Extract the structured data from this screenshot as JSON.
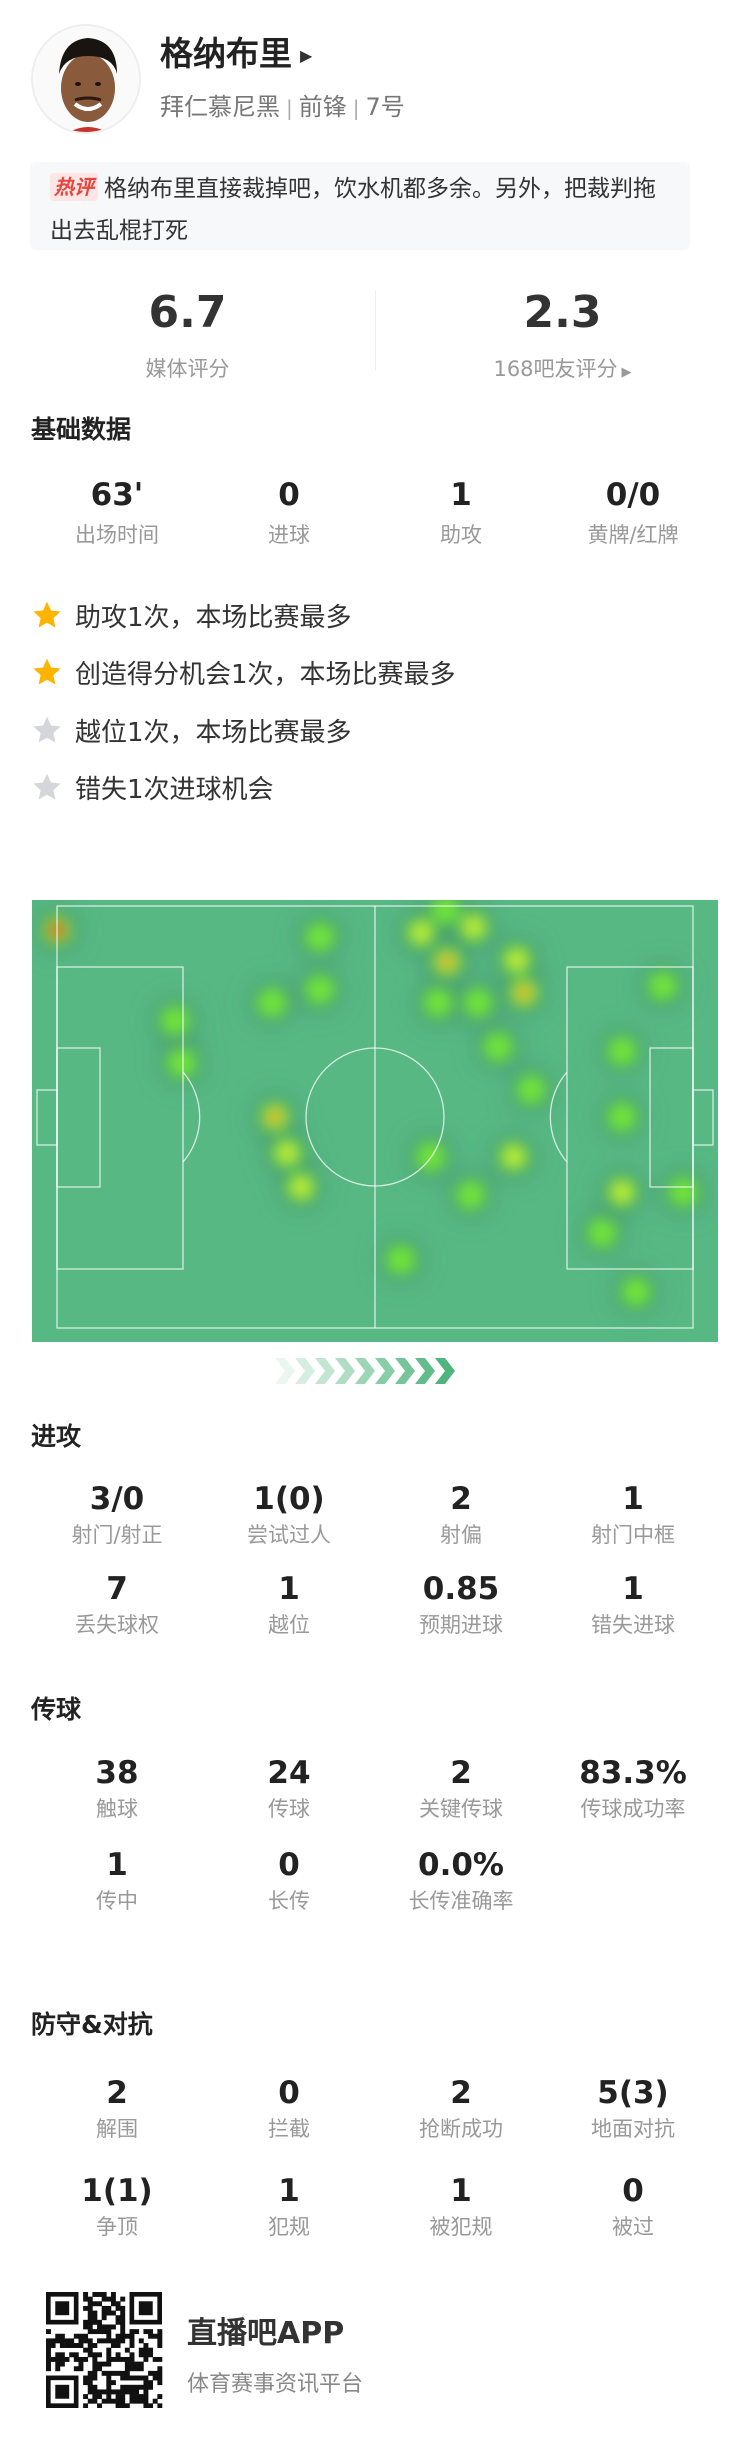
{
  "player": {
    "name": "格纳布里",
    "team": "拜仁慕尼黑",
    "position": "前锋",
    "number": "7号"
  },
  "comment": {
    "badge": "热评",
    "text": "格纳布里直接裁掉吧，饮水机都多余。另外，把裁判拖出去乱棍打死"
  },
  "ratings": {
    "media": {
      "value": "6.7",
      "label": "媒体评分"
    },
    "fans": {
      "value": "2.3",
      "label": "168吧友评分"
    }
  },
  "basic": {
    "title": "基础数据",
    "stats": [
      {
        "value": "63'",
        "label": "出场时间"
      },
      {
        "value": "0",
        "label": "进球"
      },
      {
        "value": "1",
        "label": "助攻"
      },
      {
        "value": "0/0",
        "label": "黄牌/红牌"
      }
    ]
  },
  "highlights": [
    {
      "text": "助攻1次，本场比赛最多",
      "star": "gold"
    },
    {
      "text": "创造得分机会1次，本场比赛最多",
      "star": "gold"
    },
    {
      "text": "越位1次，本场比赛最多",
      "star": "silver"
    },
    {
      "text": "错失1次进球机会",
      "star": "silver"
    }
  ],
  "colors": {
    "pitch": "#57b884",
    "gold_star": "#ffb400",
    "silver_star": "#d5d6dc",
    "hot_badge": "#e8453c"
  },
  "chart_data": {
    "type": "heatmap",
    "pitch_length_m": 105,
    "pitch_width_m": 68,
    "attack_direction": "right",
    "points": [
      {
        "x": 0,
        "y": 3.9,
        "intensity": 1.0
      },
      {
        "x": 43.4,
        "y": 5.0,
        "intensity": 0.4
      },
      {
        "x": 43.4,
        "y": 13.5,
        "intensity": 0.4
      },
      {
        "x": 35.5,
        "y": 15.6,
        "intensity": 0.4
      },
      {
        "x": 19.5,
        "y": 18.5,
        "intensity": 0.4
      },
      {
        "x": 20.6,
        "y": 25.3,
        "intensity": 0.4
      },
      {
        "x": 36.0,
        "y": 34.0,
        "intensity": 0.8
      },
      {
        "x": 38.0,
        "y": 39.8,
        "intensity": 0.5
      },
      {
        "x": 40.3,
        "y": 45.3,
        "intensity": 0.5
      },
      {
        "x": 60.1,
        "y": 4.3,
        "intensity": 0.6
      },
      {
        "x": 64.1,
        "y": 0.6,
        "intensity": 0.4
      },
      {
        "x": 68.8,
        "y": 3.4,
        "intensity": 0.6
      },
      {
        "x": 64.4,
        "y": 9.0,
        "intensity": 0.8
      },
      {
        "x": 62.9,
        "y": 15.6,
        "intensity": 0.4
      },
      {
        "x": 69.5,
        "y": 15.6,
        "intensity": 0.4
      },
      {
        "x": 77.1,
        "y": 14.0,
        "intensity": 0.8
      },
      {
        "x": 75.9,
        "y": 8.7,
        "intensity": 0.5
      },
      {
        "x": 72.8,
        "y": 22.7,
        "intensity": 0.4
      },
      {
        "x": 78.3,
        "y": 29.6,
        "intensity": 0.4
      },
      {
        "x": 100.0,
        "y": 12.9,
        "intensity": 0.4
      },
      {
        "x": 93.3,
        "y": 23.4,
        "intensity": 0.4
      },
      {
        "x": 93.3,
        "y": 34.0,
        "intensity": 0.4
      },
      {
        "x": 61.7,
        "y": 40.4,
        "intensity": 0.4
      },
      {
        "x": 75.4,
        "y": 40.4,
        "intensity": 0.5
      },
      {
        "x": 68.3,
        "y": 46.6,
        "intensity": 0.4
      },
      {
        "x": 93.3,
        "y": 46.1,
        "intensity": 0.5
      },
      {
        "x": 103.4,
        "y": 46.1,
        "intensity": 0.4
      },
      {
        "x": 90.0,
        "y": 52.7,
        "intensity": 0.4
      },
      {
        "x": 56.8,
        "y": 57.0,
        "intensity": 0.4
      },
      {
        "x": 95.6,
        "y": 62.2,
        "intensity": 0.4
      }
    ]
  },
  "attack": {
    "title": "进攻",
    "stats": [
      {
        "value": "3/0",
        "label": "射门/射正"
      },
      {
        "value": "1(0)",
        "label": "尝试过人"
      },
      {
        "value": "2",
        "label": "射偏"
      },
      {
        "value": "1",
        "label": "射门中框"
      },
      {
        "value": "7",
        "label": "丢失球权"
      },
      {
        "value": "1",
        "label": "越位"
      },
      {
        "value": "0.85",
        "label": "预期进球"
      },
      {
        "value": "1",
        "label": "错失进球"
      }
    ]
  },
  "passing": {
    "title": "传球",
    "stats": [
      {
        "value": "38",
        "label": "触球"
      },
      {
        "value": "24",
        "label": "传球"
      },
      {
        "value": "2",
        "label": "关键传球"
      },
      {
        "value": "83.3%",
        "label": "传球成功率"
      },
      {
        "value": "1",
        "label": "传中"
      },
      {
        "value": "0",
        "label": "长传"
      },
      {
        "value": "0.0%",
        "label": "长传准确率"
      }
    ]
  },
  "defense": {
    "title": "防守&对抗",
    "stats": [
      {
        "value": "2",
        "label": "解围"
      },
      {
        "value": "0",
        "label": "拦截"
      },
      {
        "value": "2",
        "label": "抢断成功"
      },
      {
        "value": "5(3)",
        "label": "地面对抗"
      },
      {
        "value": "1(1)",
        "label": "争顶"
      },
      {
        "value": "1",
        "label": "犯规"
      },
      {
        "value": "1",
        "label": "被犯规"
      },
      {
        "value": "0",
        "label": "被过"
      }
    ]
  },
  "footer": {
    "app_name": "直播吧APP",
    "tagline": "体育赛事资讯平台"
  }
}
